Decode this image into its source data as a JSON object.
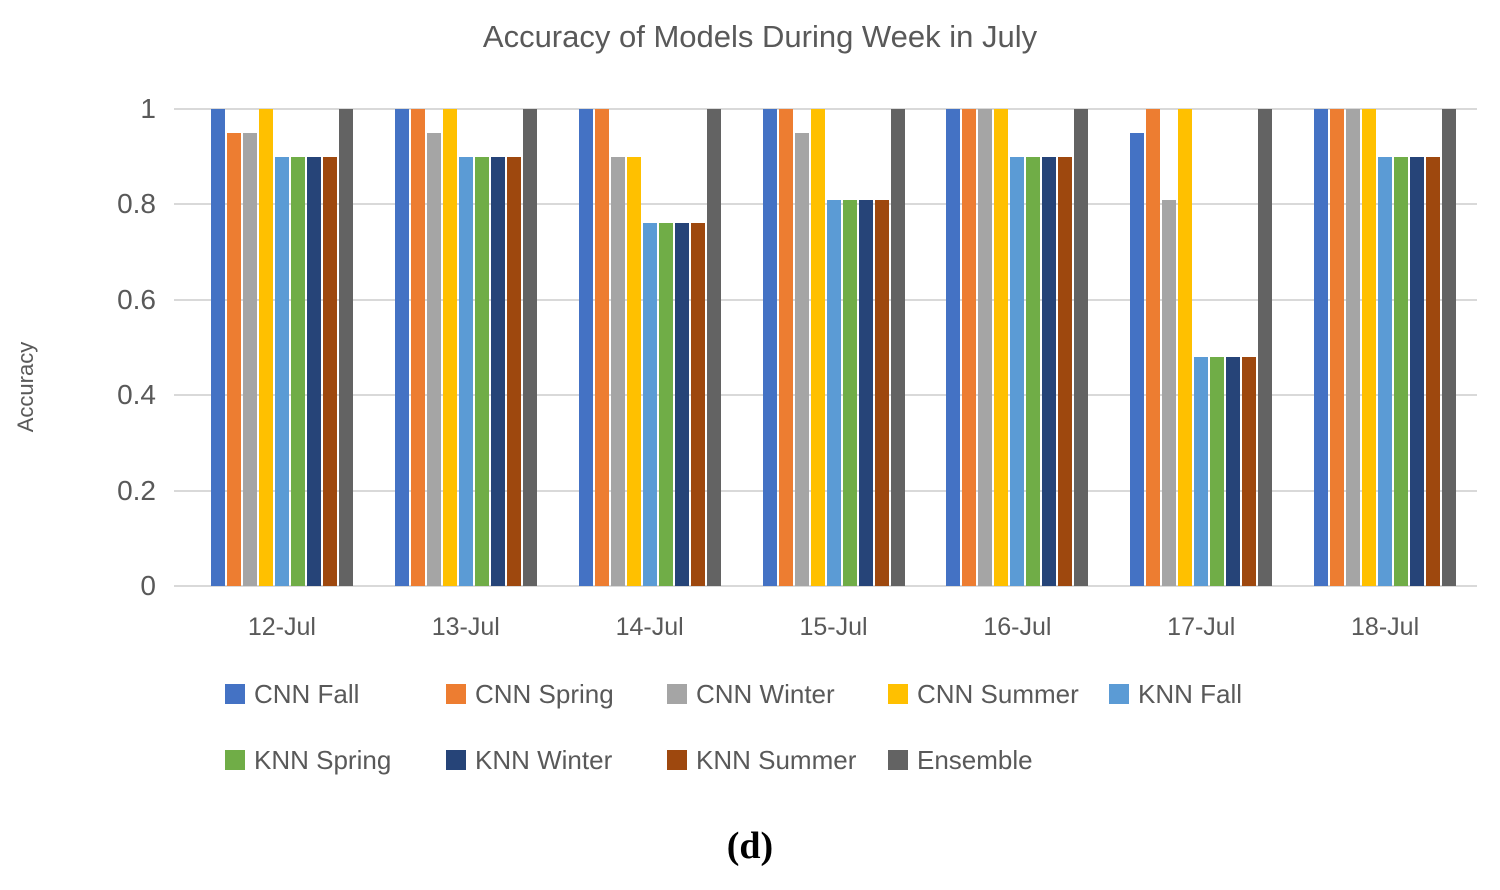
{
  "figure": {
    "caption": "(d)"
  },
  "styles": {
    "text_color": "#595959",
    "gridline_color": "#d9d9d9",
    "background": "#ffffff"
  },
  "chart_data": {
    "type": "bar",
    "title": "Accuracy of Models During Week in July",
    "xlabel": "",
    "ylabel": "Accuracy",
    "ylim": [
      0,
      1
    ],
    "yticks": [
      "1",
      "0.8",
      "0.6",
      "0.4",
      "0.2",
      "0"
    ],
    "grid": true,
    "legend_position": "bottom",
    "legend_rows": [
      5,
      4
    ],
    "categories": [
      "12-Jul",
      "13-Jul",
      "14-Jul",
      "15-Jul",
      "16-Jul",
      "17-Jul",
      "18-Jul"
    ],
    "series": [
      {
        "name": "CNN Fall",
        "color": "#4472c4",
        "values": [
          1,
          1,
          1,
          1,
          1,
          0.95,
          1
        ]
      },
      {
        "name": "CNN Spring",
        "color": "#ed7d31",
        "values": [
          0.95,
          1,
          1,
          1,
          1,
          1,
          1
        ]
      },
      {
        "name": "CNN Winter",
        "color": "#a5a5a5",
        "values": [
          0.95,
          0.95,
          0.9,
          0.95,
          1,
          0.81,
          1
        ]
      },
      {
        "name": "CNN Summer",
        "color": "#ffc000",
        "values": [
          1,
          1,
          0.9,
          1,
          1,
          1,
          1
        ]
      },
      {
        "name": "KNN Fall",
        "color": "#5b9bd5",
        "values": [
          0.9,
          0.9,
          0.76,
          0.81,
          0.9,
          0.48,
          0.9
        ]
      },
      {
        "name": "KNN Spring",
        "color": "#70ad47",
        "values": [
          0.9,
          0.9,
          0.76,
          0.81,
          0.9,
          0.48,
          0.9
        ]
      },
      {
        "name": "KNN Winter",
        "color": "#264478",
        "values": [
          0.9,
          0.9,
          0.76,
          0.81,
          0.9,
          0.48,
          0.9
        ]
      },
      {
        "name": "KNN Summer",
        "color": "#9e480e",
        "values": [
          0.9,
          0.9,
          0.76,
          0.81,
          0.9,
          0.48,
          0.9
        ]
      },
      {
        "name": "Ensemble",
        "color": "#636363",
        "values": [
          1,
          1,
          1,
          1,
          1,
          1,
          1
        ]
      }
    ]
  }
}
